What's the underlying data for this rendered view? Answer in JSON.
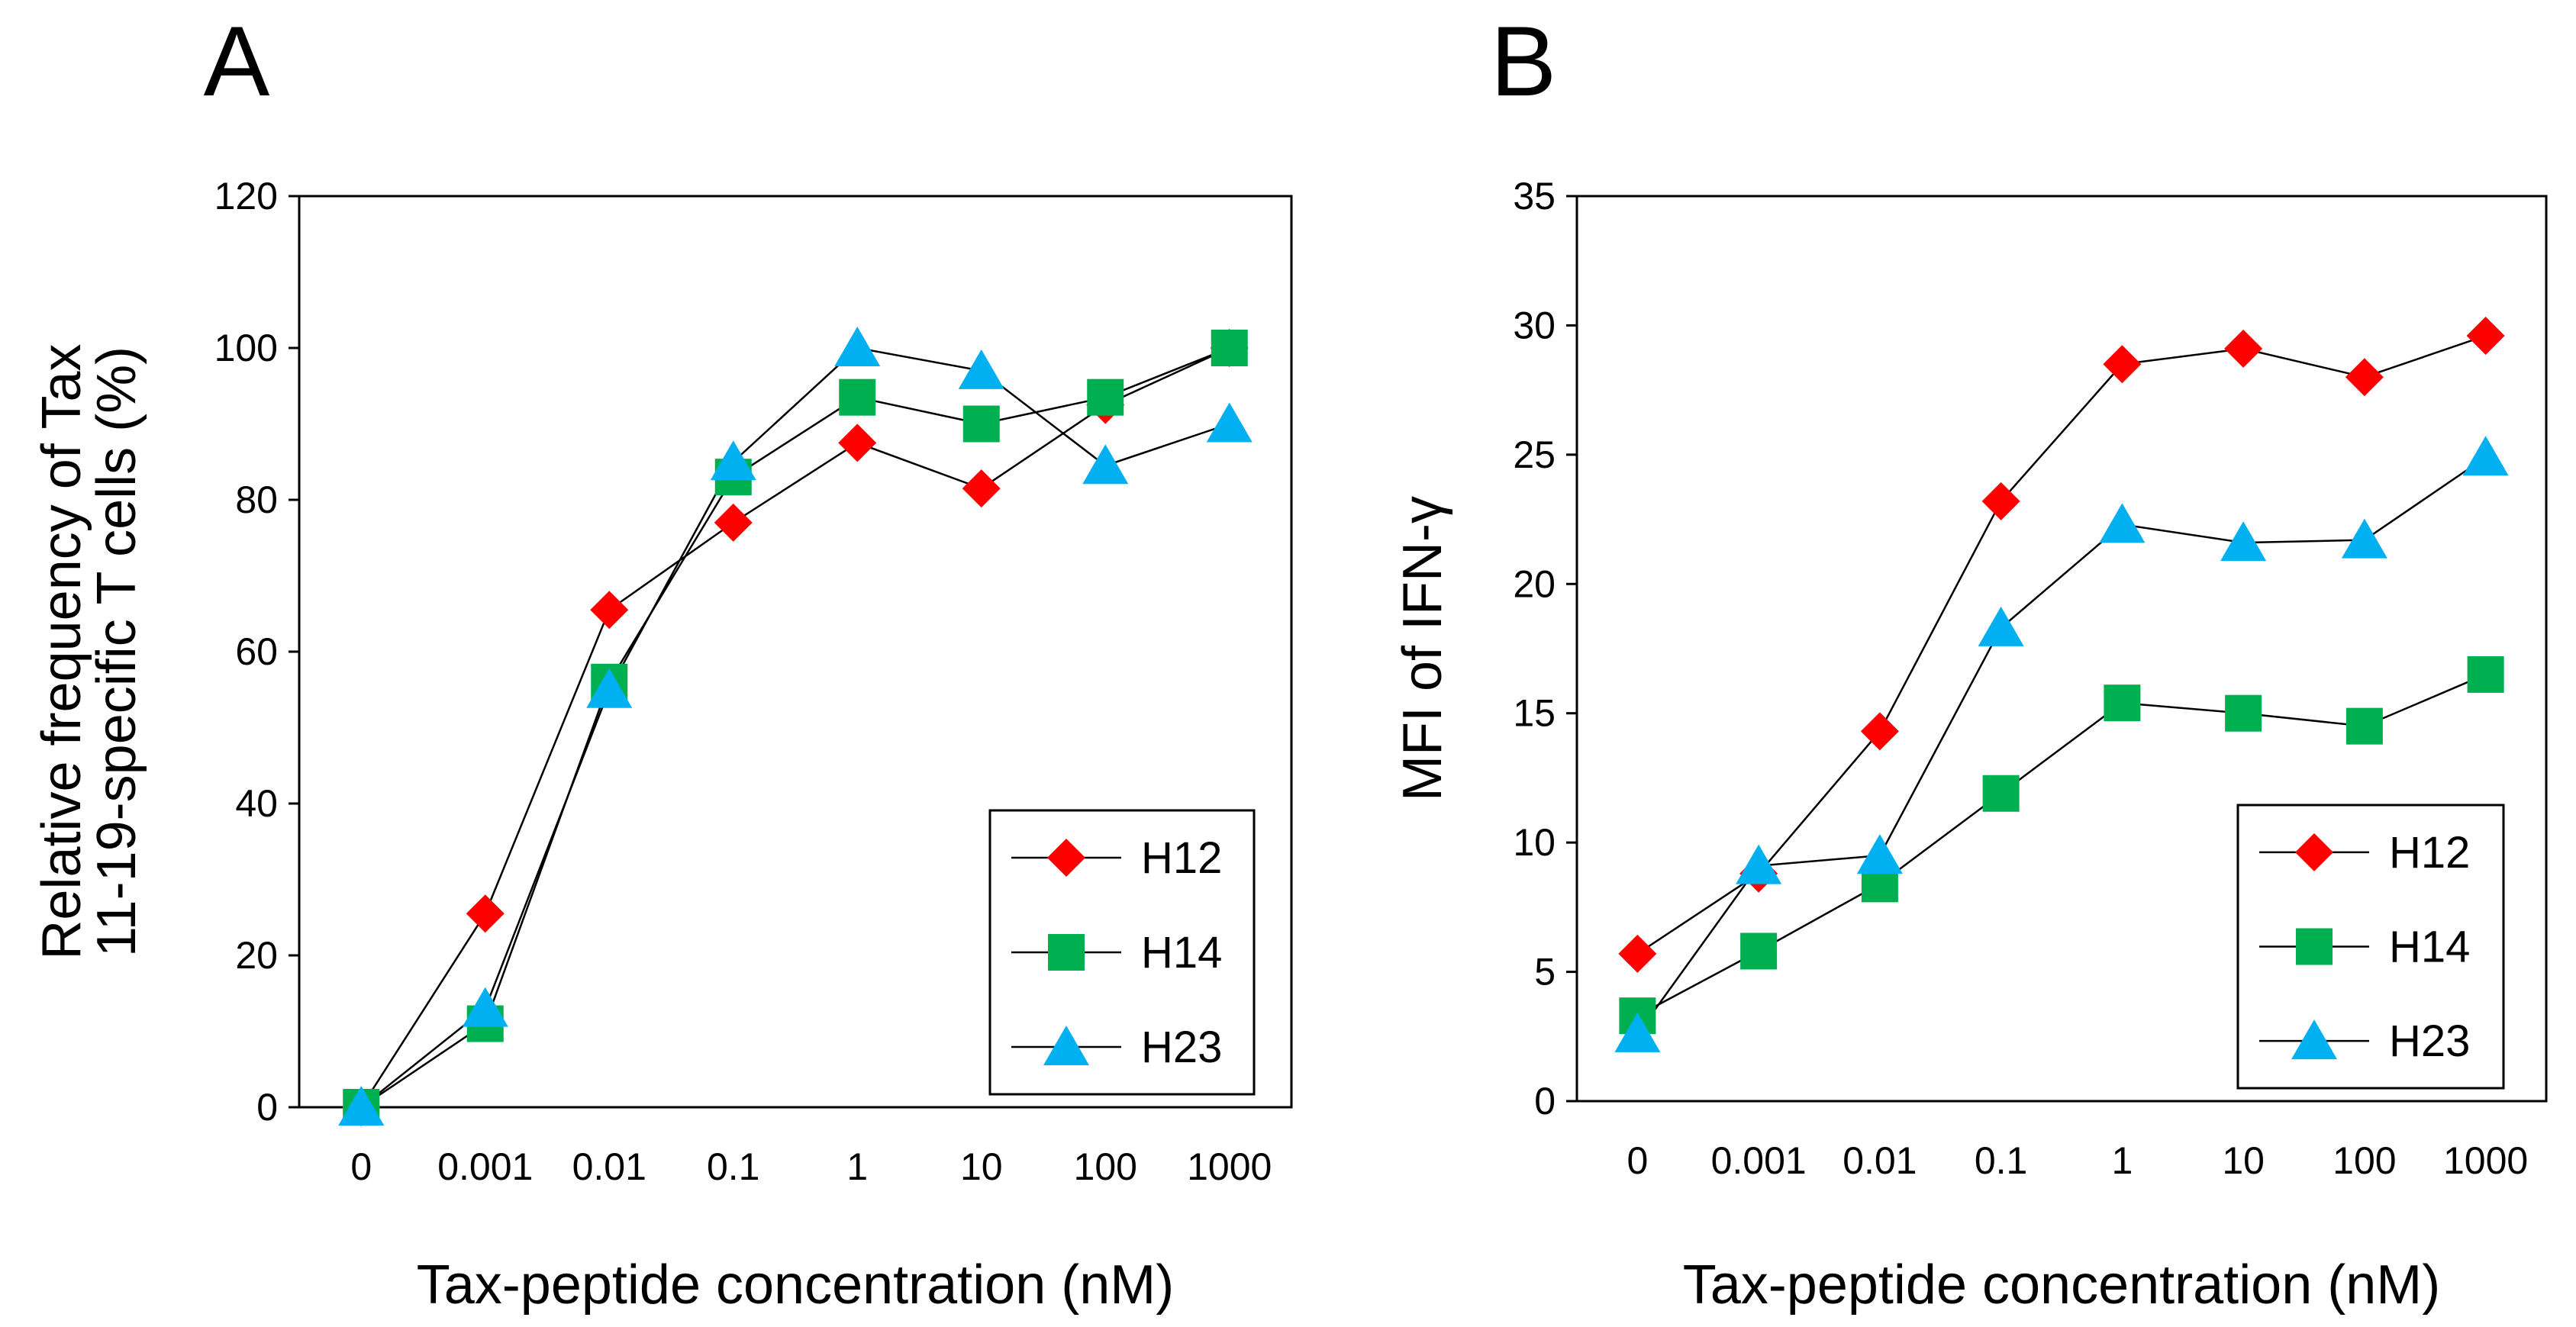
{
  "chart_data": [
    {
      "type": "line",
      "panel_label": "A",
      "xlabel": "Tax-peptide concentration (nM)",
      "ylabel_lines": [
        "Relative frequency of Tax",
        "11-19-specific T cells (%)"
      ],
      "categories": [
        "0",
        "0.001",
        "0.01",
        "0.1",
        "1",
        "10",
        "100",
        "1000"
      ],
      "ylim": [
        0,
        120
      ],
      "yticks": [
        "0",
        "20",
        "40",
        "60",
        "80",
        "100",
        "120"
      ],
      "legend_position": "bottom-right",
      "series": [
        {
          "name": "H12",
          "marker": "diamond",
          "color": "#ff0000",
          "values": [
            0,
            25.5,
            65.5,
            77,
            87.5,
            81.5,
            92.5,
            100
          ]
        },
        {
          "name": "H14",
          "marker": "square",
          "color": "#00b050",
          "values": [
            0,
            11,
            56,
            83,
            93.5,
            90,
            93.5,
            100
          ]
        },
        {
          "name": "H23",
          "marker": "triangle",
          "color": "#00b0f0",
          "values": [
            0,
            13,
            55,
            85,
            100,
            97,
            84.5,
            90
          ]
        }
      ]
    },
    {
      "type": "line",
      "panel_label": "B",
      "xlabel": "Tax-peptide concentration (nM)",
      "ylabel_lines": [
        "MFI of IFN-γ"
      ],
      "categories": [
        "0",
        "0.001",
        "0.01",
        "0.1",
        "1",
        "10",
        "100",
        "1000"
      ],
      "ylim": [
        0,
        35
      ],
      "yticks": [
        "0",
        "5",
        "10",
        "15",
        "20",
        "25",
        "30",
        "35"
      ],
      "legend_position": "bottom-right",
      "series": [
        {
          "name": "H12",
          "marker": "diamond",
          "color": "#ff0000",
          "values": [
            5.7,
            8.8,
            14.3,
            23.2,
            28.5,
            29.1,
            28.0,
            29.6
          ]
        },
        {
          "name": "H14",
          "marker": "square",
          "color": "#00b050",
          "values": [
            3.3,
            5.8,
            8.4,
            11.9,
            15.4,
            15.0,
            14.5,
            16.5
          ]
        },
        {
          "name": "H23",
          "marker": "triangle",
          "color": "#00b0f0",
          "values": [
            2.6,
            9.1,
            9.5,
            18.3,
            22.3,
            21.6,
            21.7,
            24.9
          ]
        }
      ]
    }
  ]
}
